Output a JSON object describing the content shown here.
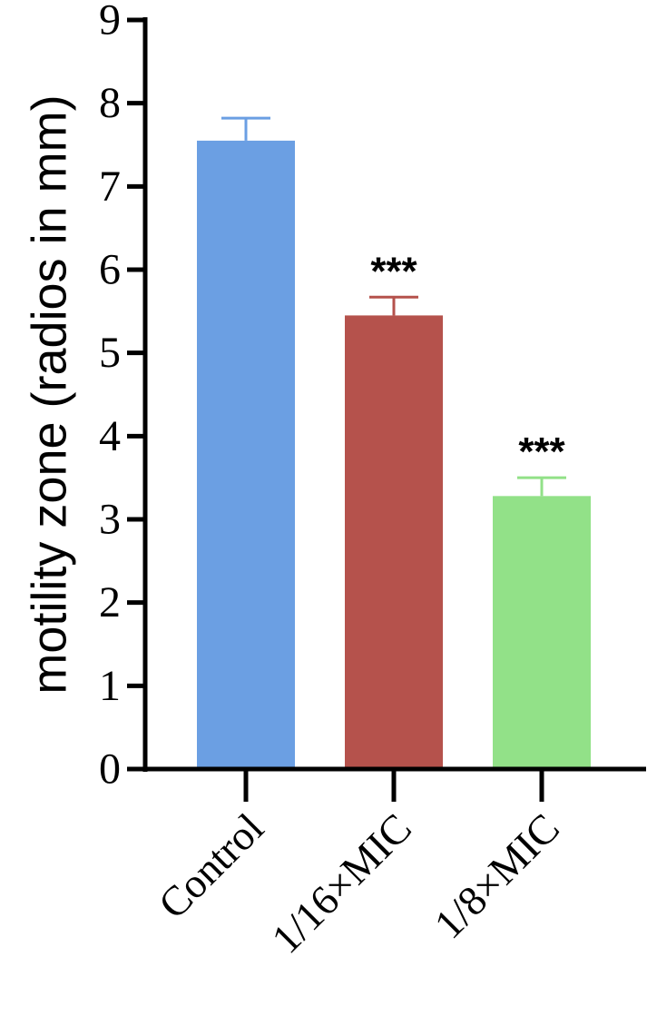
{
  "chart_data": {
    "type": "bar",
    "title": "",
    "xlabel": "",
    "ylabel": "motility zone  (radios in mm)",
    "ylim": [
      0,
      9
    ],
    "yticks": [
      0,
      1,
      2,
      3,
      4,
      5,
      6,
      7,
      8,
      9
    ],
    "categories": [
      "Control",
      "1/16×MIC",
      "1/8×MIC"
    ],
    "values": [
      7.55,
      5.45,
      3.28
    ],
    "errors": [
      0.27,
      0.22,
      0.22
    ],
    "annotations": [
      "",
      "***",
      "***"
    ],
    "colors": [
      "#6B9FE3",
      "#B5524C",
      "#92E188"
    ],
    "grid": false,
    "legend": "none"
  }
}
